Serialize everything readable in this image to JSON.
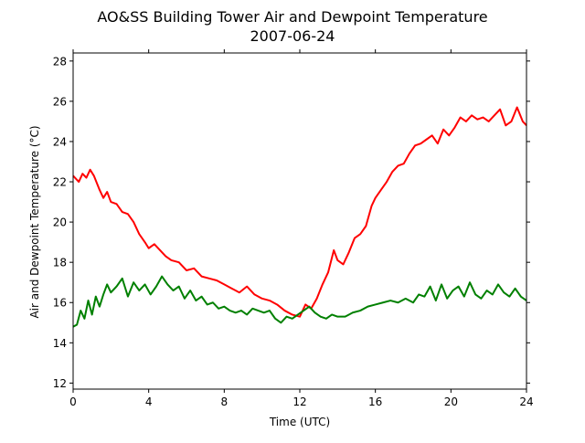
{
  "chart_data": {
    "type": "line",
    "title": "AO&SS Building Tower Air and Dewpoint Temperature",
    "subtitle": "2007-06-24",
    "xlabel": "Time (UTC)",
    "ylabel": "Air and Dewpoint Temperature (°C)",
    "xlim": [
      0,
      24
    ],
    "ylim": [
      11.7,
      28.4
    ],
    "xticks": [
      0,
      4,
      8,
      12,
      16,
      20,
      24
    ],
    "yticks": [
      12,
      14,
      16,
      18,
      20,
      22,
      24,
      26,
      28
    ],
    "grid": false,
    "series": [
      {
        "color": "#ff0000",
        "x": [
          0,
          0.3,
          0.5,
          0.7,
          0.9,
          1.1,
          1.4,
          1.6,
          1.8,
          2.0,
          2.3,
          2.6,
          2.9,
          3.2,
          3.5,
          3.8,
          4.0,
          4.3,
          4.6,
          4.9,
          5.2,
          5.6,
          6.0,
          6.4,
          6.8,
          7.2,
          7.6,
          8.0,
          8.4,
          8.8,
          9.2,
          9.6,
          10.0,
          10.4,
          10.8,
          11.2,
          11.6,
          12.0,
          12.3,
          12.6,
          12.9,
          13.2,
          13.5,
          13.8,
          14.0,
          14.3,
          14.6,
          14.9,
          15.2,
          15.5,
          15.8,
          16.0,
          16.3,
          16.6,
          16.9,
          17.2,
          17.5,
          17.8,
          18.1,
          18.4,
          18.7,
          19.0,
          19.3,
          19.6,
          19.9,
          20.2,
          20.5,
          20.8,
          21.1,
          21.4,
          21.7,
          22.0,
          22.3,
          22.6,
          22.9,
          23.2,
          23.5,
          23.8,
          24.0
        ],
        "values": [
          22.3,
          22.0,
          22.4,
          22.2,
          22.6,
          22.3,
          21.6,
          21.2,
          21.5,
          21.0,
          20.9,
          20.5,
          20.4,
          20.0,
          19.4,
          19.0,
          18.7,
          18.9,
          18.6,
          18.3,
          18.1,
          18.0,
          17.6,
          17.7,
          17.3,
          17.2,
          17.1,
          16.9,
          16.7,
          16.5,
          16.8,
          16.4,
          16.2,
          16.1,
          15.9,
          15.6,
          15.4,
          15.3,
          15.9,
          15.7,
          16.2,
          16.9,
          17.5,
          18.6,
          18.1,
          17.9,
          18.5,
          19.2,
          19.4,
          19.8,
          20.8,
          21.2,
          21.6,
          22.0,
          22.5,
          22.8,
          22.9,
          23.4,
          23.8,
          23.9,
          24.1,
          24.3,
          23.9,
          24.6,
          24.3,
          24.7,
          25.2,
          25.0,
          25.3,
          25.1,
          25.2,
          25.0,
          25.3,
          25.6,
          24.8,
          25.0,
          25.7,
          25.0,
          24.8
        ]
      },
      {
        "color": "#008000",
        "x": [
          0,
          0.2,
          0.4,
          0.6,
          0.8,
          1.0,
          1.2,
          1.4,
          1.6,
          1.8,
          2.0,
          2.3,
          2.6,
          2.9,
          3.2,
          3.5,
          3.8,
          4.1,
          4.4,
          4.7,
          5.0,
          5.3,
          5.6,
          5.9,
          6.2,
          6.5,
          6.8,
          7.1,
          7.4,
          7.7,
          8.0,
          8.3,
          8.6,
          8.9,
          9.2,
          9.5,
          9.8,
          10.1,
          10.4,
          10.7,
          11.0,
          11.3,
          11.6,
          11.9,
          12.2,
          12.5,
          12.8,
          13.1,
          13.4,
          13.7,
          14.0,
          14.4,
          14.8,
          15.2,
          15.6,
          16.0,
          16.4,
          16.8,
          17.2,
          17.6,
          18.0,
          18.3,
          18.6,
          18.9,
          19.2,
          19.5,
          19.8,
          20.1,
          20.4,
          20.7,
          21.0,
          21.3,
          21.6,
          21.9,
          22.2,
          22.5,
          22.8,
          23.1,
          23.4,
          23.7,
          24.0
        ],
        "values": [
          14.8,
          14.9,
          15.6,
          15.2,
          16.1,
          15.4,
          16.3,
          15.8,
          16.4,
          16.9,
          16.5,
          16.8,
          17.2,
          16.3,
          17.0,
          16.6,
          16.9,
          16.4,
          16.8,
          17.3,
          16.9,
          16.6,
          16.8,
          16.2,
          16.6,
          16.1,
          16.3,
          15.9,
          16.0,
          15.7,
          15.8,
          15.6,
          15.5,
          15.6,
          15.4,
          15.7,
          15.6,
          15.5,
          15.6,
          15.2,
          15.0,
          15.3,
          15.2,
          15.4,
          15.6,
          15.8,
          15.5,
          15.3,
          15.2,
          15.4,
          15.3,
          15.3,
          15.5,
          15.6,
          15.8,
          15.9,
          16.0,
          16.1,
          16.0,
          16.2,
          16.0,
          16.4,
          16.3,
          16.8,
          16.1,
          16.9,
          16.2,
          16.6,
          16.8,
          16.3,
          17.0,
          16.4,
          16.2,
          16.6,
          16.4,
          16.9,
          16.5,
          16.3,
          16.7,
          16.3,
          16.1
        ]
      }
    ]
  }
}
